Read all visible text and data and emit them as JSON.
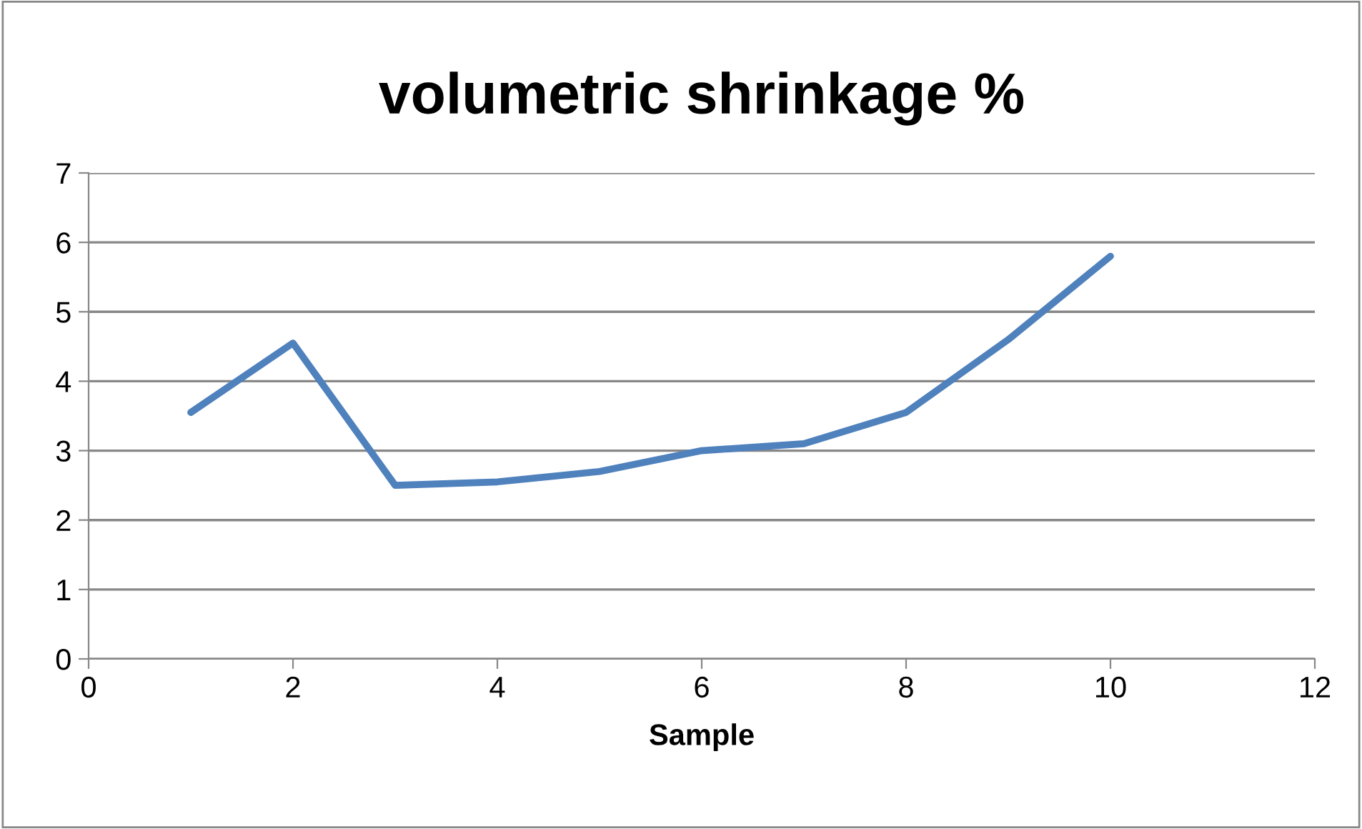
{
  "chart_data": {
    "type": "line",
    "title": "volumetric shrinkage %",
    "xlabel": "Sample",
    "x": [
      1,
      2,
      3,
      4,
      5,
      6,
      7,
      8,
      9,
      10
    ],
    "series": [
      {
        "color": "#4f81bd",
        "values": [
          3.55,
          4.55,
          2.5,
          2.55,
          2.7,
          3.0,
          3.1,
          3.55,
          4.6,
          5.8
        ]
      }
    ],
    "xlim": [
      0,
      12
    ],
    "xticks": [
      0,
      2,
      4,
      6,
      8,
      10,
      12
    ],
    "ylim": [
      0,
      7
    ],
    "yticks": [
      0,
      1,
      2,
      3,
      4,
      5,
      6,
      7
    ],
    "grid": "y",
    "legend": false,
    "marker": "none",
    "line_style": "solid"
  }
}
